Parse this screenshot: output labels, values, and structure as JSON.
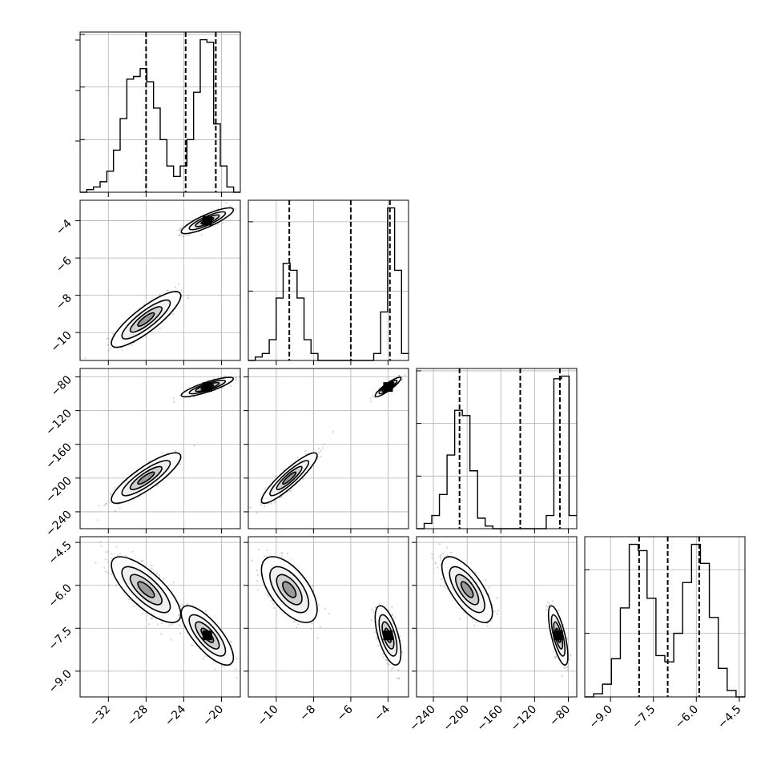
{
  "chart_data": {
    "type": "corner",
    "grid": true,
    "colors": {
      "ink": "#000000",
      "grid": "#b0b0b0",
      "points": "#808080"
    },
    "parameters": [
      {
        "range": [
          -35,
          -18
        ],
        "ticks": [
          -32,
          -28,
          -24,
          -20
        ],
        "tick_labels": [
          "−32",
          "−28",
          "−24",
          "−20"
        ],
        "quantiles": [
          -28.0,
          -23.8,
          -20.6
        ]
      },
      {
        "range": [
          -11.5,
          -2.9
        ],
        "ticks": [
          -10,
          -8,
          -6,
          -4
        ],
        "tick_labels": [
          "−10",
          "−8",
          "−6",
          "−4"
        ],
        "quantiles": [
          -9.3,
          -6.0,
          -3.9
        ]
      },
      {
        "range": [
          -260,
          -70
        ],
        "ticks": [
          -240,
          -200,
          -160,
          -120,
          -80
        ],
        "tick_labels": [
          "−240",
          "−200",
          "−160",
          "−120",
          "−80"
        ],
        "quantiles": [
          -209,
          -137,
          -90
        ]
      },
      {
        "range": [
          -9.9,
          -4.3
        ],
        "ticks": [
          -9.0,
          -7.5,
          -6.0,
          -4.5
        ],
        "tick_labels": [
          "−9.0",
          "−7.5",
          "−6.0",
          "−4.5"
        ],
        "quantiles": [
          -8.0,
          -7.0,
          -5.9
        ]
      }
    ],
    "histograms": [
      {
        "counts": [
          0,
          1,
          2,
          4,
          8,
          16,
          28,
          43,
          44,
          47,
          42,
          32,
          20,
          10,
          6,
          10,
          20,
          38,
          58,
          57,
          26,
          10,
          2,
          0
        ]
      },
      {
        "counts": [
          0,
          1,
          2,
          6,
          18,
          28,
          26,
          18,
          6,
          2,
          0,
          0,
          0,
          0,
          0,
          0,
          0,
          0,
          2,
          14,
          44,
          26,
          2
        ]
      },
      {
        "counts": [
          0,
          2,
          5,
          13,
          28,
          45,
          43,
          22,
          4,
          1,
          0,
          0,
          0,
          0,
          0,
          0,
          0,
          5,
          57,
          58,
          5
        ]
      },
      {
        "counts": [
          0,
          1,
          4,
          12,
          28,
          48,
          46,
          31,
          13,
          11,
          20,
          36,
          48,
          42,
          25,
          9,
          2,
          0
        ]
      }
    ],
    "modes": [
      {
        "center": [
          -28,
          -9.3,
          -200,
          -6.15
        ],
        "sd": [
          1.6,
          0.65,
          13,
          0.5
        ]
      },
      {
        "center": [
          -21.5,
          -4.0,
          -92,
          -7.75
        ],
        "sd": [
          1.2,
          0.3,
          5,
          0.45
        ]
      }
    ],
    "correlations": {
      "0-1": 0.85,
      "0-2": 0.85,
      "1-2": 0.9,
      "0-3": -0.75,
      "1-3": -0.6,
      "2-3": -0.7
    }
  }
}
